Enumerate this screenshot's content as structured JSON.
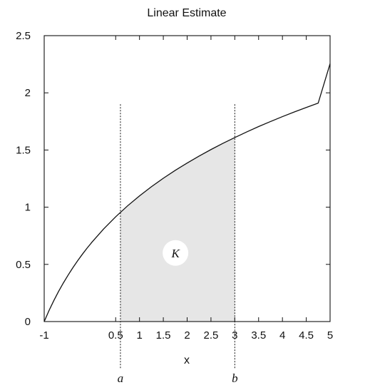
{
  "chart_data": {
    "type": "area",
    "title": "Linear Estimate",
    "xlabel": "x",
    "ylabel": "",
    "xlim": [
      -1,
      5
    ],
    "ylim": [
      0,
      2.5
    ],
    "x_ticks": [
      "-1",
      "0.5",
      "1",
      "1.5",
      "2",
      "2.5",
      "3",
      "3.5",
      "4",
      "4.5",
      "5"
    ],
    "y_ticks": [
      "0",
      "0.5",
      "1",
      "1.5",
      "2",
      "2.5"
    ],
    "series": [
      {
        "values": [
          {
            "x": -1.0,
            "y": 0.0
          },
          {
            "x": -0.9,
            "y": 0.095
          },
          {
            "x": -0.8,
            "y": 0.182
          },
          {
            "x": -0.7,
            "y": 0.262
          },
          {
            "x": -0.6,
            "y": 0.336
          },
          {
            "x": -0.5,
            "y": 0.405
          },
          {
            "x": -0.4,
            "y": 0.47
          },
          {
            "x": -0.3,
            "y": 0.531
          },
          {
            "x": -0.2,
            "y": 0.588
          },
          {
            "x": -0.1,
            "y": 0.642
          },
          {
            "x": 0.0,
            "y": 0.693
          },
          {
            "x": 0.25,
            "y": 0.811
          },
          {
            "x": 0.5,
            "y": 0.916
          },
          {
            "x": 0.75,
            "y": 1.012
          },
          {
            "x": 1.0,
            "y": 1.099
          },
          {
            "x": 1.25,
            "y": 1.179
          },
          {
            "x": 1.5,
            "y": 1.253
          },
          {
            "x": 1.75,
            "y": 1.322
          },
          {
            "x": 2.0,
            "y": 1.386
          },
          {
            "x": 2.25,
            "y": 1.447
          },
          {
            "x": 2.5,
            "y": 1.504
          },
          {
            "x": 2.75,
            "y": 1.558
          },
          {
            "x": 3.0,
            "y": 1.609
          },
          {
            "x": 3.25,
            "y": 1.658
          },
          {
            "x": 3.5,
            "y": 1.705
          },
          {
            "x": 3.75,
            "y": 1.749
          },
          {
            "x": 4.0,
            "y": 1.792
          },
          {
            "x": 4.25,
            "y": 1.833
          },
          {
            "x": 4.5,
            "y": 1.872
          },
          {
            "x": 4.75,
            "y": 1.91
          },
          {
            "x": 5.0,
            "y": 2.255
          }
        ]
      }
    ],
    "shaded_region": {
      "x_start": 0.6,
      "x_end": 3.0,
      "label": "K"
    },
    "markers": [
      {
        "label": "a",
        "x": 0.6
      },
      {
        "label": "b",
        "x": 3.0
      }
    ],
    "grid": false
  }
}
